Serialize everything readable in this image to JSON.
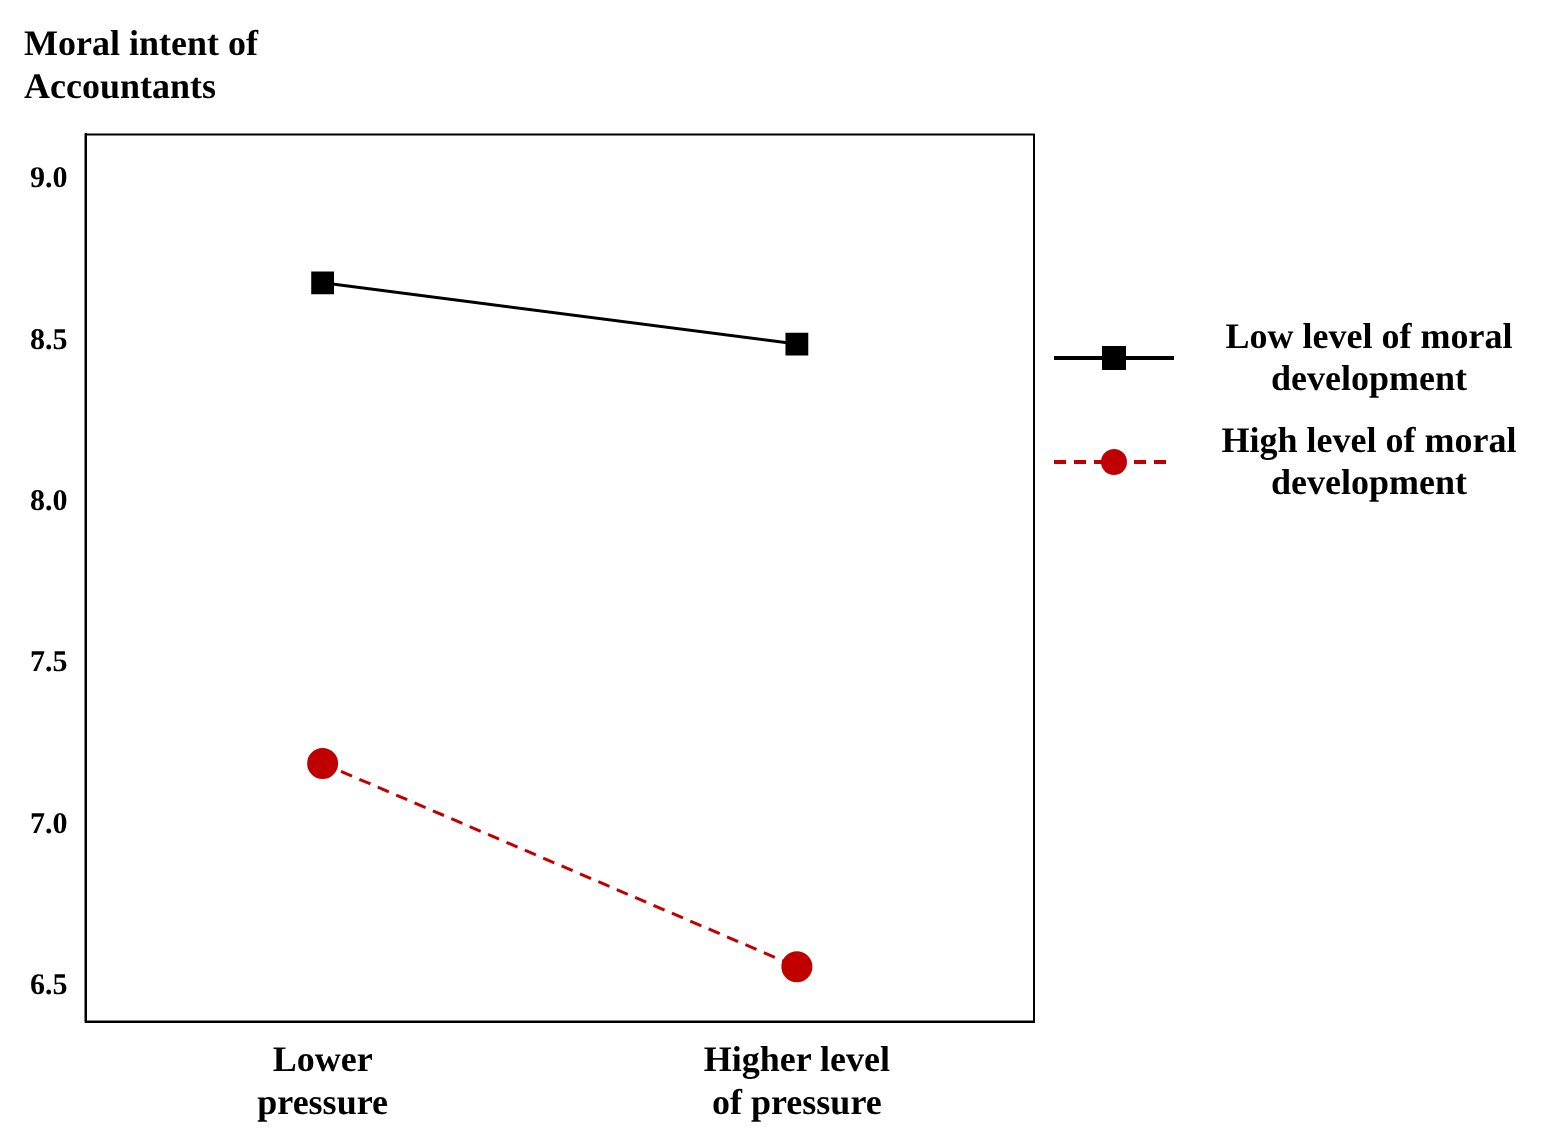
{
  "chart_data": {
    "type": "line",
    "title": "Moral intent of\nAccountants",
    "categories": [
      "Lower\npressure",
      "Higher level\nof pressure"
    ],
    "series": [
      {
        "name": "Low level of moral development",
        "color": "#000000",
        "values": [
          8.68,
          8.49
        ],
        "marker": "square",
        "line_style": "solid"
      },
      {
        "name": "High level of moral development",
        "color": "#c00000",
        "values": [
          7.19,
          6.56
        ],
        "marker": "circle",
        "line_style": "dashed"
      }
    ],
    "ylim": [
      6.39,
      9.14
    ],
    "yticks": [
      {
        "value": 6.5,
        "label": "6.5"
      },
      {
        "value": 7,
        "label": "7.0"
      },
      {
        "value": 7.5,
        "label": "7.5"
      },
      {
        "value": 8,
        "label": "8.0"
      },
      {
        "value": 8.5,
        "label": "8.5"
      },
      {
        "value": 9,
        "label": "9.0"
      }
    ],
    "grid": false,
    "legend": "right"
  }
}
